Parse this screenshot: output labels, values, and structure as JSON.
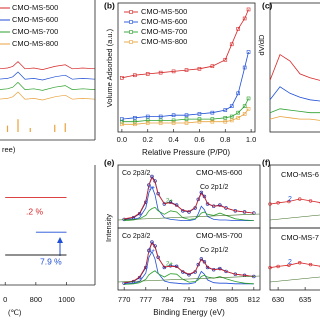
{
  "chart_data": [
    {
      "type": "line",
      "x_label": "ree)",
      "xlim": [
        20,
        80
      ],
      "ylim": [
        0,
        100
      ],
      "x": [
        20,
        25,
        30,
        33,
        36,
        40,
        45,
        50,
        57,
        63,
        67,
        73,
        80
      ],
      "series": [
        {
          "name": "CMO-MS-500",
          "color": "#d62728",
          "values": [
            78,
            79,
            80,
            82,
            88,
            79,
            80,
            78,
            82,
            84,
            79,
            80,
            79
          ]
        },
        {
          "name": "CMO-MS-600",
          "color": "#1f4fd6",
          "values": [
            65,
            66,
            67,
            69,
            75,
            66,
            67,
            65,
            69,
            71,
            66,
            67,
            66
          ]
        },
        {
          "name": "CMO-MS-700",
          "color": "#2ca02c",
          "values": [
            52,
            53,
            54,
            56,
            62,
            53,
            54,
            52,
            56,
            58,
            53,
            54,
            53
          ]
        },
        {
          "name": "CMO-MS-800",
          "color": "#e8a33c",
          "values": [
            40,
            41,
            42,
            44,
            50,
            41,
            42,
            40,
            44,
            46,
            41,
            42,
            41
          ]
        }
      ],
      "reference": {
        "color": "#e8a33c",
        "x": [
          30,
          36,
          43,
          57,
          63
        ],
        "values": [
          8,
          16,
          5,
          9,
          11
        ]
      }
    },
    {
      "type": "line",
      "panel_label": "(b)",
      "y_label": "Volume Adsorbed (a.u.)",
      "x_label": "Relative Pressure (P/P0)",
      "xlim": [
        -0.03,
        1.03
      ],
      "ylim": [
        0,
        100
      ],
      "xticks": [
        {
          "value": 0,
          "label": "0.0"
        },
        0.2,
        0.4,
        0.6,
        0.8,
        {
          "value": 1,
          "label": "1.0"
        }
      ],
      "x": [
        0.0,
        0.1,
        0.2,
        0.3,
        0.4,
        0.5,
        0.6,
        0.7,
        0.8,
        0.85,
        0.9,
        0.95,
        0.98
      ],
      "series": [
        {
          "name": "CMO-MS-500",
          "color": "#d62728",
          "values": [
            42,
            44,
            45,
            46,
            47,
            48,
            49,
            51,
            56,
            68,
            80,
            88,
            95
          ]
        },
        {
          "name": "CMO-MS-600",
          "color": "#1f4fd6",
          "values": [
            10,
            11,
            12,
            12,
            13,
            13,
            14,
            15,
            17,
            20,
            30,
            50,
            62
          ]
        },
        {
          "name": "CMO-MS-700",
          "color": "#2ca02c",
          "values": [
            8,
            8,
            9,
            9,
            9,
            10,
            10,
            10,
            11,
            12,
            15,
            20,
            26
          ]
        },
        {
          "name": "CMO-MS-800",
          "color": "#e8a33c",
          "values": [
            6,
            6,
            7,
            7,
            7,
            7,
            8,
            8,
            8,
            9,
            11,
            14,
            18
          ]
        }
      ]
    },
    {
      "type": "line",
      "panel_label": "(c)",
      "y_label": "dV/dD",
      "xlim": [
        0,
        6
      ],
      "ylim": [
        0,
        100
      ],
      "x": [
        0,
        1,
        2,
        3,
        4,
        5,
        6
      ],
      "series": [
        {
          "color": "#d62728",
          "values": [
            40,
            60,
            55,
            45,
            42,
            40,
            38
          ]
        },
        {
          "color": "#1f4fd6",
          "values": [
            25,
            35,
            30,
            27,
            25,
            24,
            23
          ]
        },
        {
          "color": "#2ca02c",
          "values": [
            15,
            18,
            17,
            16,
            15,
            15,
            14
          ]
        },
        {
          "color": "#e8a33c",
          "values": [
            10,
            12,
            11,
            10,
            10,
            9,
            9
          ]
        }
      ]
    },
    {
      "type": "line",
      "x_label": "(℃)",
      "xlim": [
        566,
        1186
      ],
      "ylim": [
        0,
        100
      ],
      "xticks": [
        {
          "value": 600,
          "label": "0"
        },
        800,
        1000
      ],
      "series": [
        {
          "color": "#d62728",
          "x": [
            600,
            800,
            1000
          ],
          "values": [
            73,
            73,
            73
          ]
        },
        {
          "color": "#1f4fd6",
          "x": [
            800,
            1000
          ],
          "values": [
            44,
            44
          ]
        },
        {
          "color": "#222222",
          "x": [
            600,
            800,
            1000
          ],
          "values": [
            25,
            25,
            25
          ]
        }
      ],
      "annotations": [
        {
          "text": ".2 %",
          "color": "#d62728"
        },
        {
          "text": "7.9 %",
          "color": "#1f4fd6"
        }
      ]
    },
    {
      "type": "xps",
      "panel_label": "(e)",
      "y_label": "Intensity",
      "x_label": "Binding Energy (eV)",
      "xlim": [
        768,
        814
      ],
      "ylim": [
        0,
        110
      ],
      "xticks": [
        770,
        777,
        784,
        791,
        798,
        805,
        812
      ],
      "x": [
        770,
        773,
        775,
        777,
        778,
        779,
        780,
        781,
        783,
        785,
        787,
        789,
        791,
        793,
        794,
        795,
        796,
        797,
        799,
        801,
        803,
        806,
        809,
        812
      ],
      "subplots": [
        {
          "title": "CMO-MS-600",
          "annotations": [
            "Co 2p3/2",
            "Co 2p1/2",
            "3+",
            "2+"
          ],
          "series": [
            {
              "color": "#1a1a8c",
              "marker": true,
              "values": [
                15,
                18,
                25,
                45,
                75,
                90,
                82,
                60,
                42,
                45,
                40,
                30,
                28,
                35,
                50,
                62,
                55,
                42,
                38,
                40,
                35,
                30,
                28,
                26
              ]
            },
            {
              "color": "#d62728",
              "values": [
                16,
                19,
                26,
                47,
                74,
                88,
                80,
                59,
                43,
                44,
                39,
                31,
                29,
                36,
                49,
                60,
                54,
                43,
                38,
                39,
                35,
                30,
                28,
                26
              ]
            },
            {
              "color": "#1f4fd6",
              "values": [
                14,
                15,
                18,
                35,
                62,
                72,
                58,
                32,
                18,
                15,
                14,
                13,
                13,
                15,
                25,
                38,
                32,
                20,
                15,
                14,
                14,
                13,
                13,
                13
              ]
            },
            {
              "color": "#2ca02c",
              "values": [
                13,
                14,
                16,
                22,
                30,
                34,
                36,
                30,
                24,
                30,
                28,
                18,
                15,
                16,
                20,
                26,
                28,
                24,
                22,
                26,
                22,
                16,
                14,
                13
              ]
            }
          ]
        },
        {
          "title": "CMO-MS-700",
          "annotations": [
            "Co 2p3/2",
            "Co 2p1/2",
            "3+",
            "2+"
          ],
          "series": [
            {
              "color": "#1a1a8c",
              "marker": true,
              "values": [
                12,
                15,
                22,
                40,
                70,
                85,
                78,
                58,
                40,
                43,
                42,
                32,
                27,
                32,
                45,
                55,
                50,
                40,
                36,
                38,
                33,
                28,
                26,
                24
              ]
            },
            {
              "color": "#d62728",
              "values": [
                13,
                16,
                23,
                42,
                69,
                83,
                76,
                57,
                41,
                42,
                41,
                33,
                28,
                33,
                44,
                54,
                49,
                41,
                36,
                37,
                33,
                28,
                26,
                24
              ]
            },
            {
              "color": "#1f4fd6",
              "values": [
                11,
                12,
                15,
                30,
                58,
                68,
                55,
                30,
                16,
                13,
                12,
                11,
                11,
                13,
                22,
                33,
                28,
                18,
                13,
                12,
                12,
                11,
                11,
                11
              ]
            },
            {
              "color": "#2ca02c",
              "values": [
                10,
                11,
                13,
                19,
                27,
                31,
                34,
                29,
                23,
                29,
                28,
                19,
                14,
                15,
                18,
                24,
                26,
                23,
                21,
                24,
                20,
                15,
                12,
                11
              ]
            }
          ]
        }
      ]
    },
    {
      "type": "xps",
      "panel_label": "(f)",
      "xlim": [
        628.5,
        639.6
      ],
      "ylim": [
        0,
        100
      ],
      "xticks": [
        630,
        635
      ],
      "x": [
        628.5,
        630,
        632,
        634,
        636,
        638,
        639.6
      ],
      "subplots": [
        {
          "title": "CMO-MS-6",
          "annotations": [
            "2"
          ],
          "series": [
            {
              "color": "#d62728",
              "marker": true,
              "values": [
                38,
                40,
                42,
                46,
                43,
                40,
                39
              ]
            }
          ]
        },
        {
          "title": "CMO-MS-7",
          "annotations": [
            "2"
          ],
          "series": [
            {
              "color": "#d62728",
              "marker": true,
              "values": [
                36,
                38,
                40,
                44,
                41,
                38,
                37
              ]
            }
          ]
        }
      ]
    }
  ]
}
